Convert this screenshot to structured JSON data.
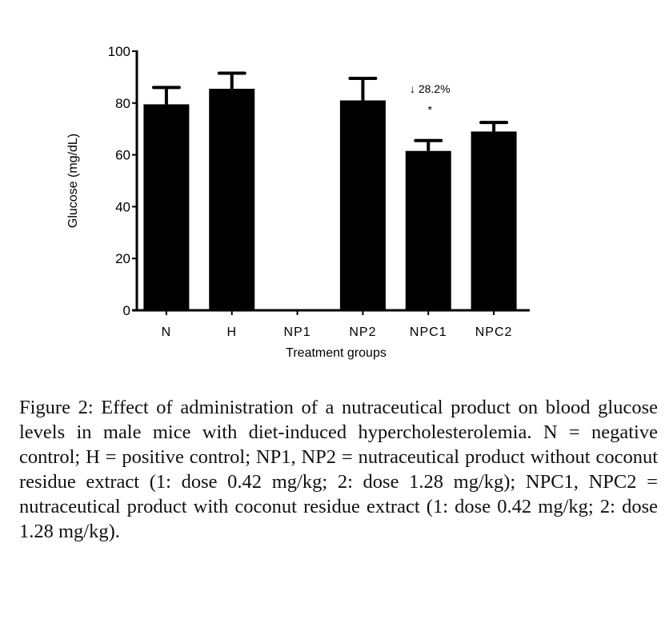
{
  "chart_data": {
    "type": "bar",
    "title": "",
    "xlabel": "Treatment groups",
    "ylabel": "Glucose (mg/dL)",
    "ylim": [
      0,
      100
    ],
    "yticks": [
      0,
      20,
      40,
      60,
      80,
      100
    ],
    "categories": [
      "N",
      "H",
      "NP1",
      "NP2",
      "NPC1",
      "NPC2"
    ],
    "values": [
      79.5,
      85.5,
      0,
      81,
      61.5,
      69
    ],
    "errors": [
      6.5,
      6,
      0,
      8.5,
      4,
      3.5
    ],
    "bar_color": "#000000",
    "grid": false,
    "annotations": [
      {
        "category": "NPC1",
        "text": "↓ 28.2%",
        "y": 84
      },
      {
        "category": "NPC1",
        "text": "*",
        "y": 76
      }
    ]
  },
  "caption": {
    "label": "Figure 2:",
    "text": "Effect of administration of a nutraceutical product on blood glucose levels in male mice with diet-induced hypercholesterolemia. N = negative control; H = positive control; NP1, NP2 = nutraceutical product without coconut residue extract (1: dose 0.42 mg/kg; 2: dose 1.28 mg/kg); NPC1, NPC2 = nutraceutical product with coconut residue extract (1: dose 0.42 mg/kg; 2: dose 1.28 mg/kg)."
  }
}
